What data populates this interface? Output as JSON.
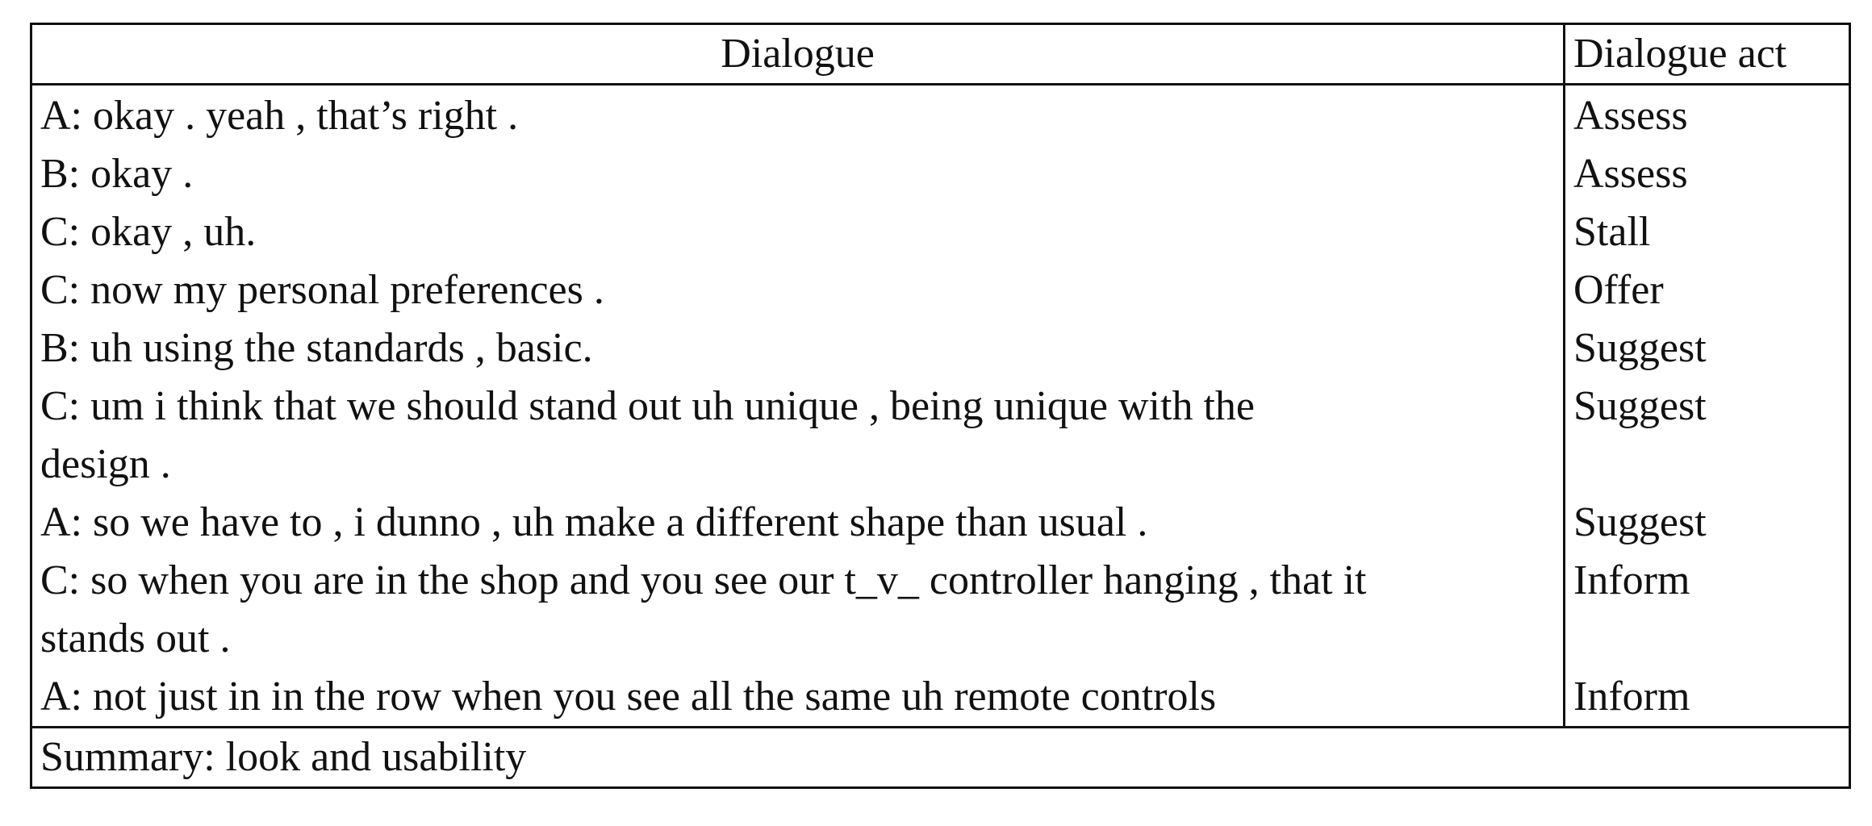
{
  "table": {
    "headers": {
      "dialogue": "Dialogue",
      "act": "Dialogue act"
    },
    "rows": [
      {
        "dialogue": "A: okay . yeah , that’s right .",
        "act": "Assess"
      },
      {
        "dialogue": "B: okay .",
        "act": "Assess"
      },
      {
        "dialogue": "C: okay , uh.",
        "act": "Stall"
      },
      {
        "dialogue": "C: now my personal preferences .",
        "act": "Offer"
      },
      {
        "dialogue": "B: uh using the standards , basic.",
        "act": "Suggest"
      },
      {
        "dialogue": "C: um i think that we should stand out uh unique , being unique with the design .",
        "act": "Suggest"
      },
      {
        "dialogue": "A: so we have to , i dunno , uh make a different shape than usual .",
        "act": "Suggest"
      },
      {
        "dialogue": "C: so when you are in the shop and you see our t_v_ controller hanging , that it stands out .",
        "act": "Inform"
      },
      {
        "dialogue": "A: not just in in the row when you see all the same uh remote controls",
        "act": "Inform"
      }
    ],
    "summary": "Summary: look and usability"
  }
}
